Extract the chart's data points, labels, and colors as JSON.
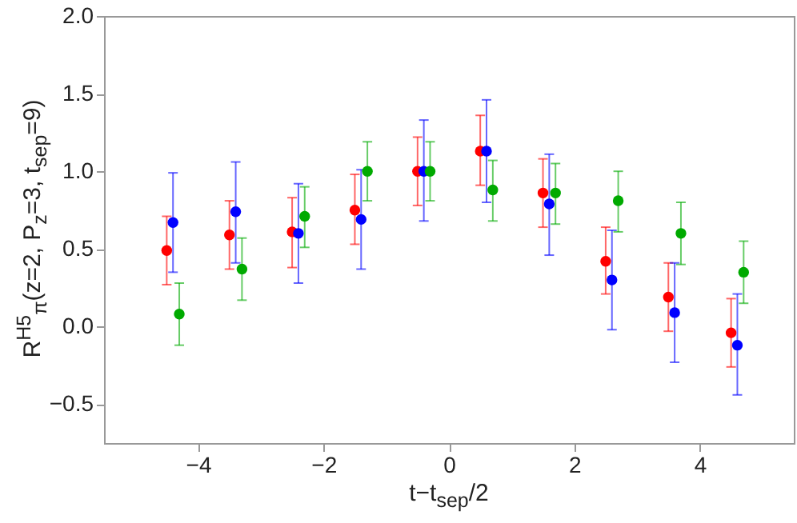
{
  "chart_data": {
    "type": "scatter",
    "xlabel": "t−t$_{sep}$/2",
    "ylabel": "R$^{H5}$$_{π}$(z=2, P$_{z}$=3, t$_{sep}$=9)",
    "xlim": [
      -5.5,
      5.5
    ],
    "ylim": [
      -0.75,
      2.0
    ],
    "xticks": [
      {
        "value": -4,
        "label": "−4"
      },
      {
        "value": -2,
        "label": "−2"
      },
      0,
      2,
      4
    ],
    "yticks": [
      {
        "value": -0.5,
        "label": "−0.5"
      },
      {
        "value": 0,
        "label": "0.0"
      },
      0.5,
      {
        "value": 1,
        "label": "1.0"
      },
      1.5,
      {
        "value": 2,
        "label": "2.0"
      }
    ],
    "grid": false,
    "marker": "circle",
    "series": [
      {
        "color": "#ff0000",
        "x": [
          -4.5,
          -3.5,
          -2.5,
          -1.5,
          -0.5,
          0.5,
          1.5,
          2.5,
          3.5,
          4.5
        ],
        "values": [
          0.49,
          0.59,
          0.61,
          0.75,
          1.0,
          1.13,
          0.86,
          0.42,
          0.19,
          -0.04
        ],
        "errors": [
          [
            0.27,
            0.71
          ],
          [
            0.37,
            0.81
          ],
          [
            0.38,
            0.83
          ],
          [
            0.53,
            0.98
          ],
          [
            0.78,
            1.22
          ],
          [
            0.91,
            1.36
          ],
          [
            0.64,
            1.08
          ],
          [
            0.21,
            0.64
          ],
          [
            -0.03,
            0.41
          ],
          [
            -0.26,
            0.18
          ]
        ]
      },
      {
        "color": "#0000ff",
        "x": [
          -4.4,
          -3.4,
          -2.4,
          -1.4,
          -0.4,
          0.6,
          1.6,
          2.6,
          3.6,
          4.6
        ],
        "values": [
          0.67,
          0.74,
          0.6,
          0.69,
          1.0,
          1.13,
          0.79,
          0.3,
          0.09,
          -0.12
        ],
        "errors": [
          [
            0.35,
            0.99
          ],
          [
            0.41,
            1.06
          ],
          [
            0.28,
            0.92
          ],
          [
            0.37,
            1.01
          ],
          [
            0.68,
            1.33
          ],
          [
            0.8,
            1.46
          ],
          [
            0.46,
            1.11
          ],
          [
            -0.02,
            0.62
          ],
          [
            -0.23,
            0.41
          ],
          [
            -0.44,
            0.21
          ]
        ]
      },
      {
        "color": "#00aa00",
        "x": [
          -4.3,
          -3.3,
          -2.3,
          -1.3,
          -0.3,
          0.7,
          1.7,
          2.7,
          3.7,
          4.7
        ],
        "values": [
          0.08,
          0.37,
          0.71,
          1.0,
          1.0,
          0.88,
          0.86,
          0.81,
          0.6,
          0.35
        ],
        "errors": [
          [
            -0.12,
            0.28
          ],
          [
            0.17,
            0.57
          ],
          [
            0.51,
            0.9
          ],
          [
            0.81,
            1.19
          ],
          [
            0.81,
            1.19
          ],
          [
            0.68,
            1.07
          ],
          [
            0.66,
            1.05
          ],
          [
            0.61,
            1.0
          ],
          [
            0.4,
            0.8
          ],
          [
            0.15,
            0.55
          ]
        ]
      }
    ]
  }
}
